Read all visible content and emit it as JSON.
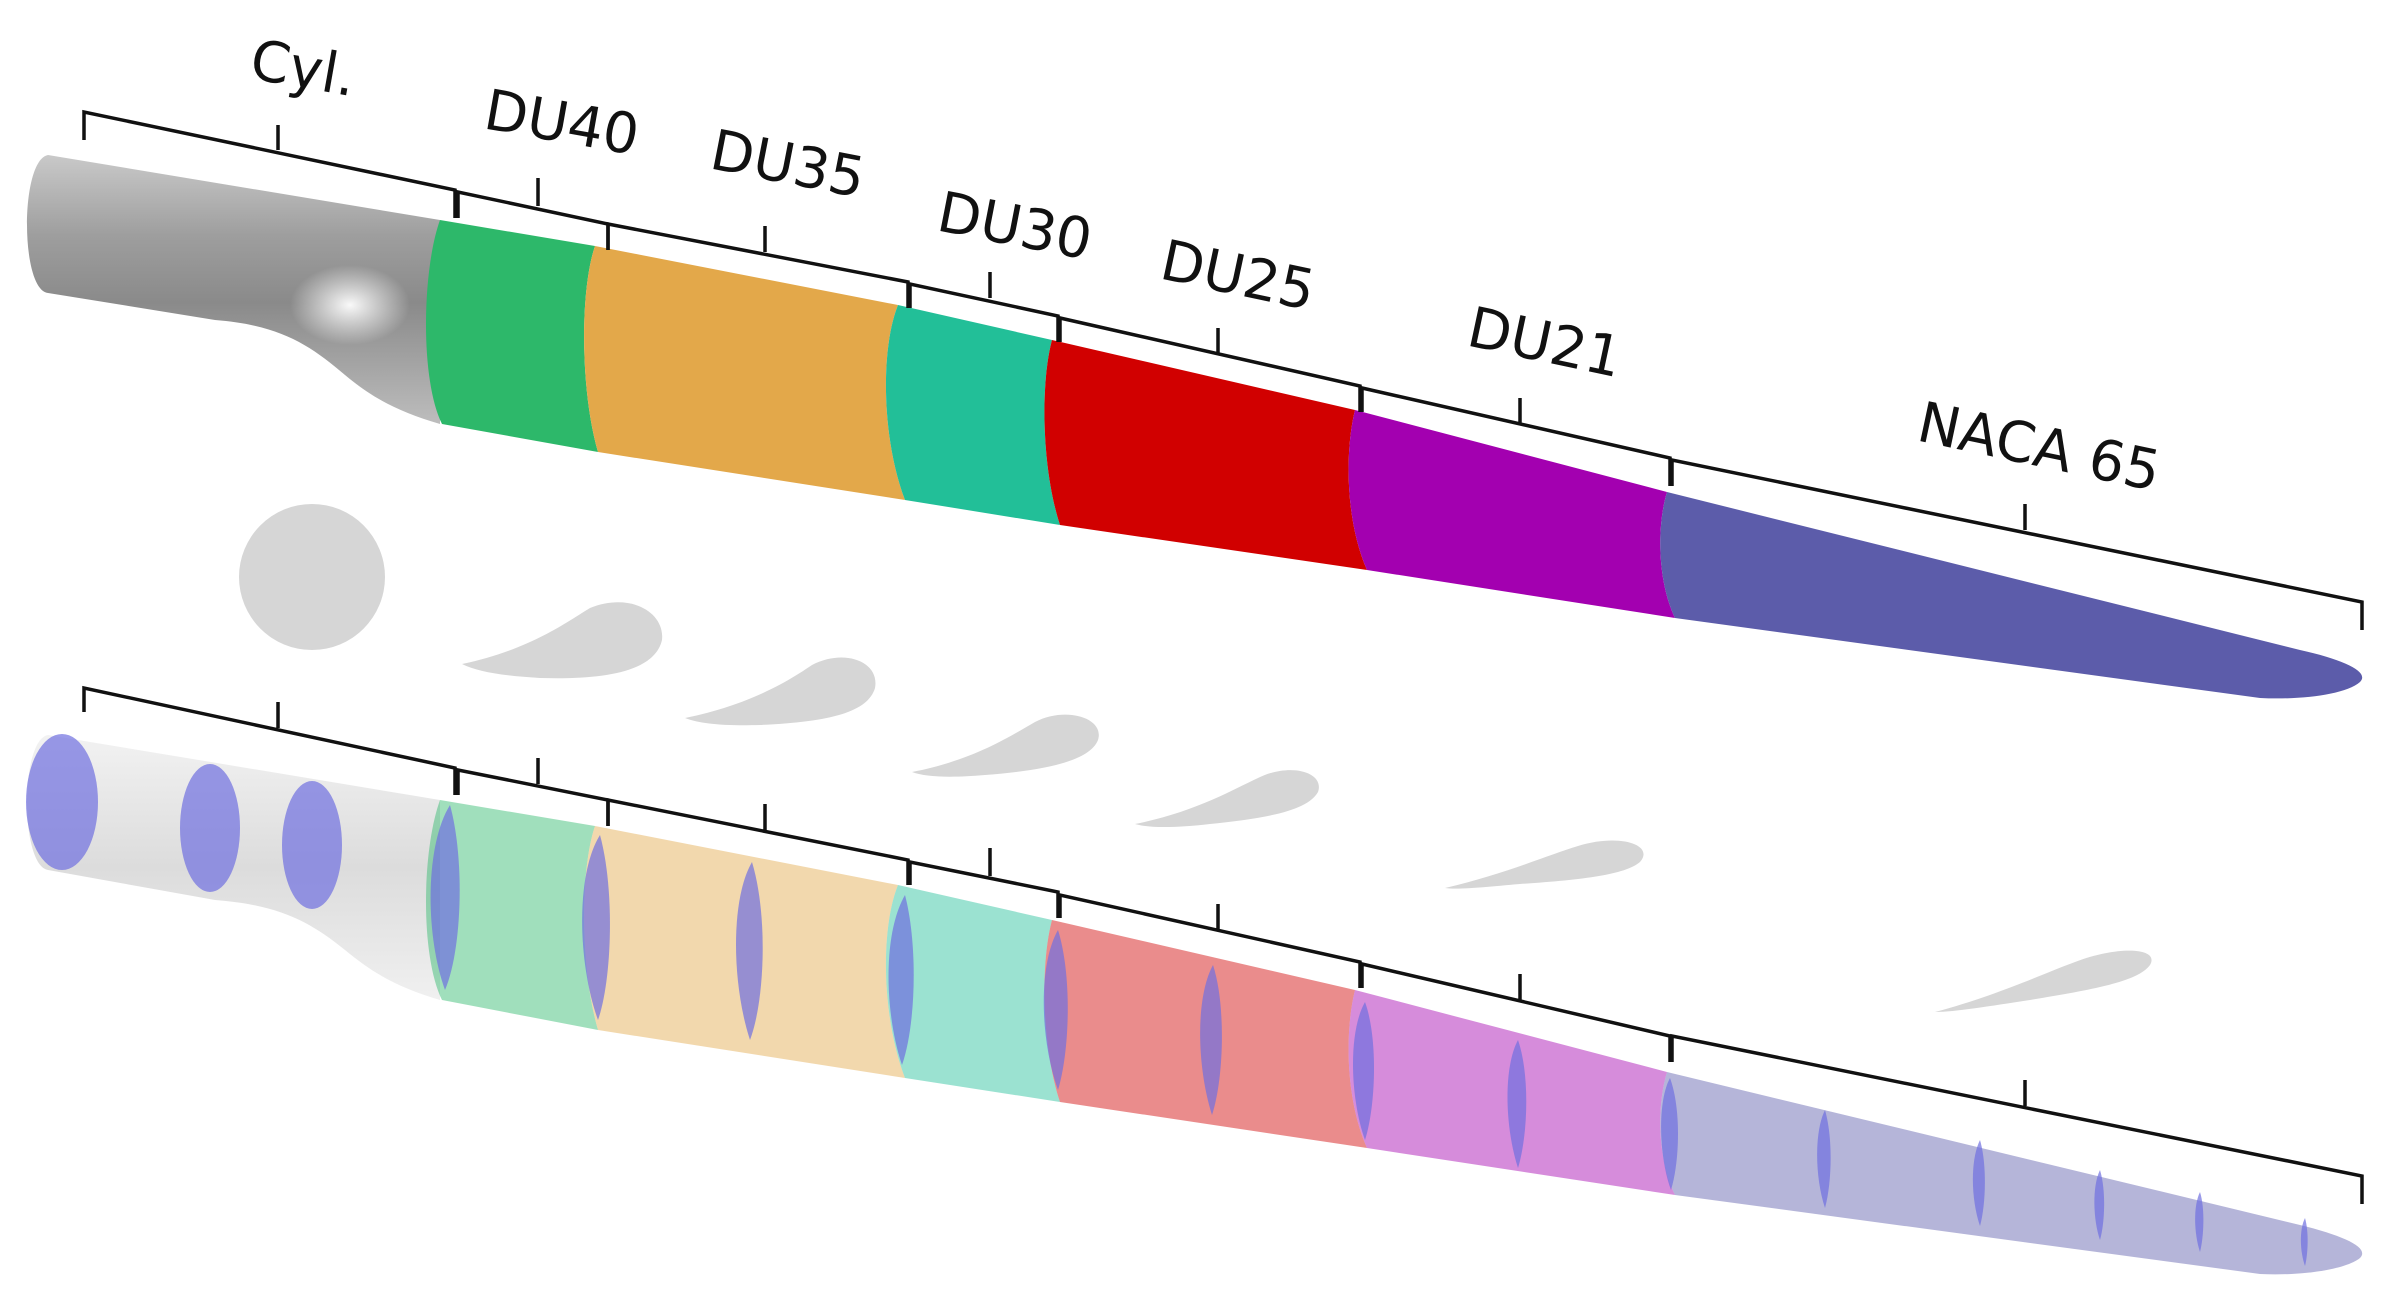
{
  "diagram": {
    "segments": [
      {
        "id": "cyl",
        "label": "Cyl.",
        "color": "#a9a9a9",
        "section": "circle"
      },
      {
        "id": "du40",
        "label": "DU40",
        "color": "#2db86a",
        "section": "airfoil"
      },
      {
        "id": "du35",
        "label": "DU35",
        "color": "#e3a84a",
        "section": "airfoil"
      },
      {
        "id": "du30",
        "label": "DU30",
        "color": "#22bf98",
        "section": "airfoil"
      },
      {
        "id": "du25",
        "label": "DU25",
        "color": "#d10000",
        "section": "airfoil"
      },
      {
        "id": "du21",
        "label": "DU21",
        "color": "#a300b0",
        "section": "airfoil"
      },
      {
        "id": "naca65",
        "label": "NACA 65",
        "color": "#5c5caa",
        "section": "airfoil"
      }
    ],
    "cross_section_fill": "#d6d6d6",
    "station_marker_color": "#6f6fe0",
    "lower_blade_opacity": 0.45
  }
}
